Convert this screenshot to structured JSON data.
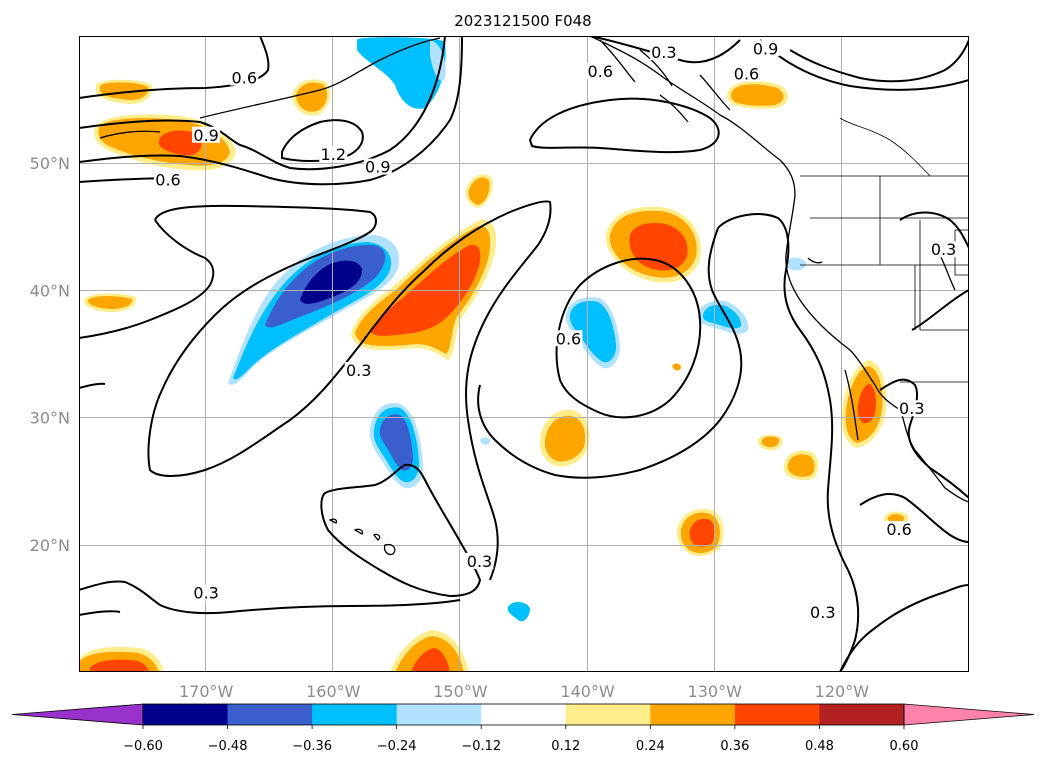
{
  "title": "2023121500 F048",
  "map": {
    "lon_range": [
      -180,
      -110
    ],
    "lat_range": [
      10,
      60
    ],
    "lon_ticks": [
      {
        "value": -170,
        "label": "170°W"
      },
      {
        "value": -160,
        "label": "160°W"
      },
      {
        "value": -150,
        "label": "150°W"
      },
      {
        "value": -140,
        "label": "140°W"
      },
      {
        "value": -130,
        "label": "130°W"
      },
      {
        "value": -120,
        "label": "120°W"
      }
    ],
    "lat_ticks": [
      {
        "value": 20,
        "label": "20°N"
      },
      {
        "value": 30,
        "label": "30°N"
      },
      {
        "value": 40,
        "label": "40°N"
      },
      {
        "value": 50,
        "label": "50°N"
      }
    ],
    "grid": true
  },
  "colorbar": {
    "levels": [
      -0.6,
      -0.48,
      -0.36,
      -0.24,
      -0.12,
      0.12,
      0.24,
      0.36,
      0.48,
      0.6
    ],
    "tick_labels": [
      "−0.60",
      "−0.48",
      "−0.36",
      "−0.24",
      "−0.12",
      "0.12",
      "0.24",
      "0.36",
      "0.48",
      "0.60"
    ],
    "colors": [
      "#9932cc",
      "#00008b",
      "#3a5fcd",
      "#00bfff",
      "#b0e2ff",
      "#ffffff",
      "#ffec8b",
      "#ffa500",
      "#ff4500",
      "#b22222",
      "#ff82ab"
    ],
    "extend": "both"
  },
  "contour_labels": [
    {
      "text": "0.6",
      "lon": -167.0,
      "lat": 56.5
    },
    {
      "text": "0.6",
      "lon": -173.0,
      "lat": 48.5
    },
    {
      "text": "0.9",
      "lon": -170.0,
      "lat": 52.0
    },
    {
      "text": "1.2",
      "lon": -160.0,
      "lat": 50.5
    },
    {
      "text": "0.9",
      "lon": -156.5,
      "lat": 49.5
    },
    {
      "text": "0.3",
      "lon": -134.0,
      "lat": 58.5
    },
    {
      "text": "0.6",
      "lon": -139.0,
      "lat": 57.0
    },
    {
      "text": "0.9",
      "lon": -126.0,
      "lat": 58.8
    },
    {
      "text": "0.6",
      "lon": -127.5,
      "lat": 56.8
    },
    {
      "text": "0.3",
      "lon": -158.0,
      "lat": 33.5
    },
    {
      "text": "0.6",
      "lon": -141.5,
      "lat": 36.0
    },
    {
      "text": "0.3",
      "lon": -112.0,
      "lat": 43.0
    },
    {
      "text": "0.3",
      "lon": -114.5,
      "lat": 30.5
    },
    {
      "text": "0.3",
      "lon": -170.0,
      "lat": 16.0
    },
    {
      "text": "0.3",
      "lon": -148.5,
      "lat": 18.5
    },
    {
      "text": "0.6",
      "lon": -115.5,
      "lat": 21.0
    },
    {
      "text": "0.3",
      "lon": -121.5,
      "lat": 14.5
    }
  ]
}
